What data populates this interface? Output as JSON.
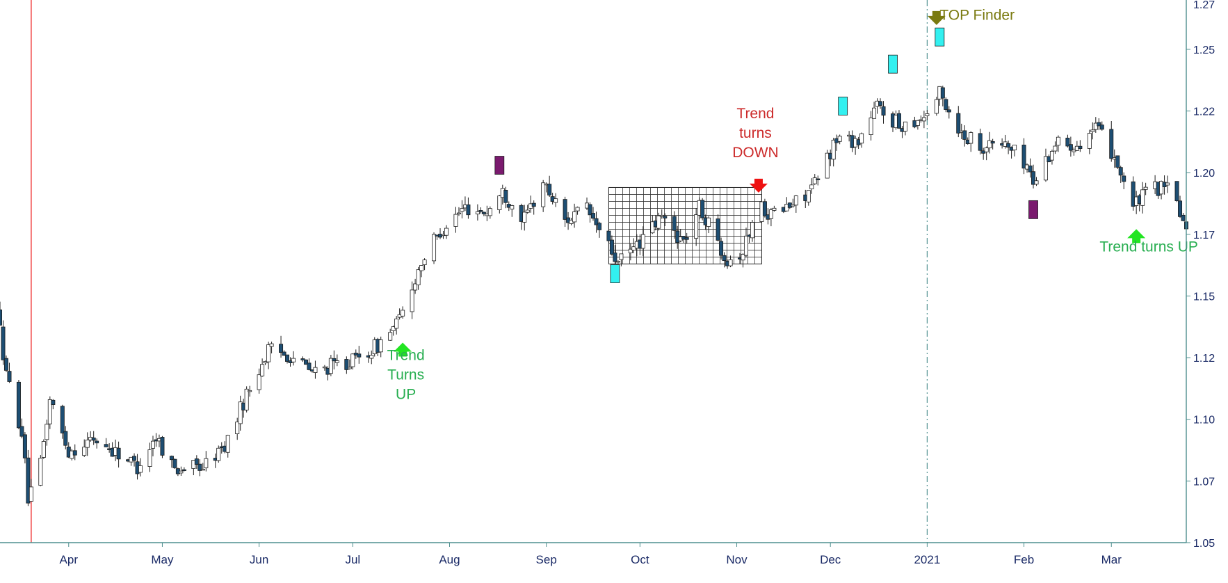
{
  "chart_data": {
    "type": "candlestick",
    "title": "",
    "xlabel": "",
    "ylabel": "",
    "ylim": [
      1.05,
      1.27
    ],
    "y_ticks": [
      "1.05",
      "1.07",
      "1.10",
      "1.12",
      "1.15",
      "1.17",
      "1.20",
      "1.22",
      "1.25",
      "1.27"
    ],
    "y_tick_values": [
      1.05,
      1.075,
      1.1,
      1.125,
      1.15,
      1.175,
      1.2,
      1.225,
      1.25,
      1.275
    ],
    "x_range": [
      "2020-03-10",
      "2021-03-25"
    ],
    "x_ticks": [
      {
        "label": "Apr",
        "date": "2020-04-01"
      },
      {
        "label": "May",
        "date": "2020-05-01"
      },
      {
        "label": "Jun",
        "date": "2020-06-01"
      },
      {
        "label": "Jul",
        "date": "2020-07-01"
      },
      {
        "label": "Aug",
        "date": "2020-08-01"
      },
      {
        "label": "Sep",
        "date": "2020-09-01"
      },
      {
        "label": "Oct",
        "date": "2020-10-01"
      },
      {
        "label": "Nov",
        "date": "2020-11-01"
      },
      {
        "label": "Dec",
        "date": "2020-12-01"
      },
      {
        "label": "2021",
        "date": "2021-01-01"
      },
      {
        "label": "Feb",
        "date": "2021-02-01"
      },
      {
        "label": "Mar",
        "date": "2021-03-01"
      }
    ],
    "grid": false,
    "colors": {
      "up_body": "#ffffff",
      "down_body": "#1d4e73",
      "candle_outline": "#1c1c1c",
      "cyan_marker": "#33f0f0",
      "purple_marker": "#7a1a6e",
      "green_arrow": "#22e522",
      "red_arrow": "#ee1111",
      "olive": "#7a7a10",
      "green_text": "#27ae50",
      "red_text": "#cc2a2a",
      "axis": "#4f8f8f",
      "red_vline": "#d03030"
    },
    "price_path": [
      [
        "2020-03-10",
        1.145
      ],
      [
        "2020-03-13",
        1.118
      ],
      [
        "2020-03-18",
        1.095
      ],
      [
        "2020-03-20",
        1.068
      ],
      [
        "2020-03-23",
        1.073
      ],
      [
        "2020-03-27",
        1.108
      ],
      [
        "2020-04-02",
        1.087
      ],
      [
        "2020-04-10",
        1.092
      ],
      [
        "2020-04-17",
        1.087
      ],
      [
        "2020-04-24",
        1.081
      ],
      [
        "2020-04-30",
        1.093
      ],
      [
        "2020-05-06",
        1.08
      ],
      [
        "2020-05-15",
        1.081
      ],
      [
        "2020-05-22",
        1.089
      ],
      [
        "2020-05-29",
        1.11
      ],
      [
        "2020-06-05",
        1.128
      ],
      [
        "2020-06-12",
        1.126
      ],
      [
        "2020-06-19",
        1.119
      ],
      [
        "2020-06-26",
        1.122
      ],
      [
        "2020-07-03",
        1.124
      ],
      [
        "2020-07-10",
        1.13
      ],
      [
        "2020-07-17",
        1.14
      ],
      [
        "2020-07-24",
        1.164
      ],
      [
        "2020-07-31",
        1.178
      ],
      [
        "2020-08-07",
        1.186
      ],
      [
        "2020-08-14",
        1.184
      ],
      [
        "2020-08-19",
        1.192
      ],
      [
        "2020-08-26",
        1.181
      ],
      [
        "2020-09-01",
        1.196
      ],
      [
        "2020-09-08",
        1.181
      ],
      [
        "2020-09-15",
        1.185
      ],
      [
        "2020-09-22",
        1.17
      ],
      [
        "2020-09-25",
        1.163
      ],
      [
        "2020-10-02",
        1.172
      ],
      [
        "2020-10-09",
        1.182
      ],
      [
        "2020-10-16",
        1.172
      ],
      [
        "2020-10-21",
        1.186
      ],
      [
        "2020-10-30",
        1.165
      ],
      [
        "2020-11-04",
        1.168
      ],
      [
        "2020-11-09",
        1.188
      ],
      [
        "2020-11-13",
        1.183
      ],
      [
        "2020-11-20",
        1.187
      ],
      [
        "2020-11-27",
        1.195
      ],
      [
        "2020-12-04",
        1.214
      ],
      [
        "2020-12-11",
        1.213
      ],
      [
        "2020-12-17",
        1.227
      ],
      [
        "2020-12-24",
        1.219
      ],
      [
        "2021-01-01",
        1.223
      ],
      [
        "2021-01-06",
        1.232
      ],
      [
        "2021-01-13",
        1.216
      ],
      [
        "2021-01-20",
        1.211
      ],
      [
        "2021-01-27",
        1.212
      ],
      [
        "2021-02-03",
        1.203
      ],
      [
        "2021-02-05",
        1.196
      ],
      [
        "2021-02-12",
        1.212
      ],
      [
        "2021-02-19",
        1.212
      ],
      [
        "2021-02-25",
        1.218
      ],
      [
        "2021-03-03",
        1.207
      ],
      [
        "2021-03-09",
        1.186
      ],
      [
        "2021-03-15",
        1.194
      ],
      [
        "2021-03-22",
        1.193
      ],
      [
        "2021-03-25",
        1.18
      ]
    ],
    "markers": [
      {
        "shape": "square",
        "color": "cyan",
        "date": "2020-09-23",
        "value": 1.159
      },
      {
        "shape": "square",
        "color": "cyan",
        "date": "2020-12-05",
        "value": 1.227
      },
      {
        "shape": "square",
        "color": "cyan",
        "date": "2020-12-21",
        "value": 1.244
      },
      {
        "shape": "square",
        "color": "cyan",
        "date": "2021-01-05",
        "value": 1.255
      },
      {
        "shape": "square",
        "color": "purple",
        "date": "2020-08-17",
        "value": 1.203
      },
      {
        "shape": "square",
        "color": "purple",
        "date": "2021-02-04",
        "value": 1.185
      },
      {
        "shape": "arrow-up",
        "color": "green",
        "date": "2020-07-17",
        "value": 1.128
      },
      {
        "shape": "arrow-down",
        "color": "red",
        "date": "2020-11-08",
        "value": 1.195
      },
      {
        "shape": "arrow-up",
        "color": "green",
        "date": "2021-03-09",
        "value": 1.174
      },
      {
        "shape": "arrow-down",
        "color": "olive",
        "date": "2021-01-04",
        "value": 1.263
      }
    ],
    "annotations": [
      {
        "lines": [
          "Trend",
          "Turns",
          "UP"
        ],
        "color": "green",
        "date": "2020-07-18",
        "value": 1.124
      },
      {
        "lines": [
          "Trend",
          "turns",
          "DOWN"
        ],
        "color": "red",
        "date": "2020-11-07",
        "value": 1.222
      },
      {
        "lines": [
          "Trend turns UP"
        ],
        "color": "green",
        "date": "2021-03-13",
        "value": 1.168
      },
      {
        "lines": [
          "TOP Finder"
        ],
        "color": "olive",
        "date": "2021-01-17",
        "value": 1.262
      }
    ],
    "grid_box": {
      "x_start": "2020-09-21",
      "x_end": "2020-11-09",
      "y_low": 1.163,
      "y_high": 1.194
    },
    "vertical_lines": [
      {
        "date": "2020-03-20",
        "style": "solid",
        "color": "red"
      },
      {
        "date": "2021-01-01",
        "style": "dash-dot",
        "color": "axis"
      }
    ]
  }
}
